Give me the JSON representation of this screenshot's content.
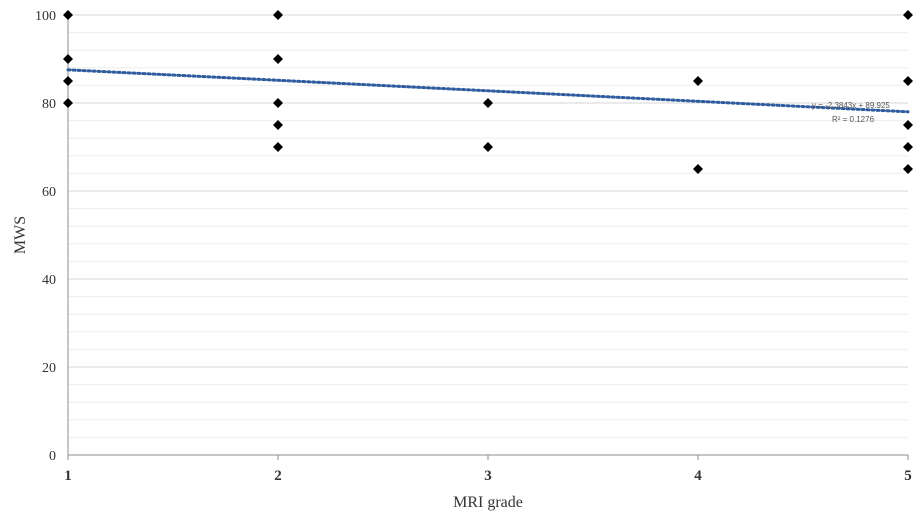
{
  "chart_data": {
    "type": "scatter",
    "title": "",
    "xlabel": "MRI grade",
    "ylabel": "MWS",
    "xlim": [
      1,
      5
    ],
    "ylim": [
      0,
      100
    ],
    "x_ticks": [
      "1",
      "2",
      "3",
      "4",
      "5"
    ],
    "y_ticks": [
      "0",
      "20",
      "40",
      "60",
      "80",
      "100"
    ],
    "y_major_step": 20,
    "y_minor_step": 4,
    "grid": true,
    "marker_color": "#000000",
    "points": [
      {
        "x": 1,
        "y": 100
      },
      {
        "x": 1,
        "y": 90
      },
      {
        "x": 1,
        "y": 85
      },
      {
        "x": 1,
        "y": 80
      },
      {
        "x": 2,
        "y": 100
      },
      {
        "x": 2,
        "y": 90
      },
      {
        "x": 2,
        "y": 80
      },
      {
        "x": 2,
        "y": 75
      },
      {
        "x": 2,
        "y": 70
      },
      {
        "x": 3,
        "y": 80
      },
      {
        "x": 3,
        "y": 70
      },
      {
        "x": 4,
        "y": 85
      },
      {
        "x": 4,
        "y": 65
      },
      {
        "x": 5,
        "y": 100
      },
      {
        "x": 5,
        "y": 85
      },
      {
        "x": 5,
        "y": 75
      },
      {
        "x": 5,
        "y": 70
      },
      {
        "x": 5,
        "y": 65
      }
    ],
    "trendline": {
      "slope": -2.3843,
      "intercept": 89.925,
      "equation": "y = -2.3843x + 89.925",
      "r_squared": "R² = 0.1276",
      "color": "#2e5c9e",
      "style": "dotted"
    }
  }
}
